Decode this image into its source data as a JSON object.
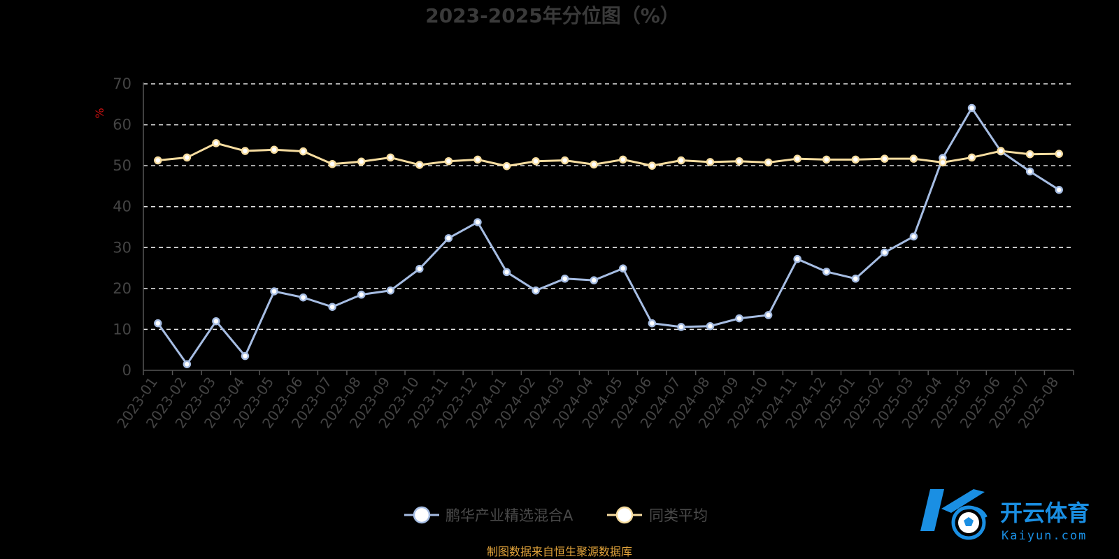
{
  "chart_data": {
    "type": "line",
    "title": "2023-2025年分位图（%）",
    "unit_label": "%",
    "ylim": [
      0,
      70
    ],
    "yticks": [
      0,
      10,
      20,
      30,
      40,
      50,
      60,
      70
    ],
    "grid": true,
    "legend_position": "bottom",
    "categories": [
      "2023-01",
      "2023-02",
      "2023-03",
      "2023-04",
      "2023-05",
      "2023-06",
      "2023-07",
      "2023-08",
      "2023-09",
      "2023-10",
      "2023-11",
      "2023-12",
      "2024-01",
      "2024-02",
      "2024-03",
      "2024-04",
      "2024-05",
      "2024-06",
      "2024-07",
      "2024-08",
      "2024-09",
      "2024-10",
      "2024-11",
      "2024-12",
      "2025-01",
      "2025-02",
      "2025-03",
      "2025-04",
      "2025-05",
      "2025-06",
      "2025-07",
      "2025-08"
    ],
    "series": [
      {
        "name": "鹏华产业精选混合A",
        "color": "#a6bde3",
        "values": [
          11.5,
          1.5,
          12.0,
          3.5,
          19.3,
          17.8,
          15.5,
          18.5,
          19.5,
          24.8,
          32.3,
          36.2,
          24.0,
          19.5,
          22.4,
          22.0,
          24.9,
          11.5,
          10.6,
          10.8,
          12.7,
          13.5,
          27.2,
          24.1,
          22.4,
          28.8,
          32.7,
          51.9,
          64.1,
          53.5,
          48.6,
          44.1
        ]
      },
      {
        "name": "同类平均",
        "color": "#f7dda0",
        "values": [
          51.3,
          52.0,
          55.5,
          53.6,
          53.9,
          53.5,
          50.4,
          51.0,
          52.0,
          50.2,
          51.1,
          51.5,
          49.9,
          51.1,
          51.3,
          50.3,
          51.5,
          50.0,
          51.3,
          50.9,
          51.1,
          50.8,
          51.7,
          51.5,
          51.5,
          51.7,
          51.7,
          50.8,
          52.0,
          53.6,
          52.8,
          52.9
        ]
      }
    ]
  },
  "source_note": "制图数据来自恒生聚源数据库",
  "watermark": {
    "logo_text": "开云体育",
    "logo_sub": "Kaiyun.com",
    "logo_icon": "k-soccer-ball-logo",
    "color": "#1a8fe3"
  }
}
